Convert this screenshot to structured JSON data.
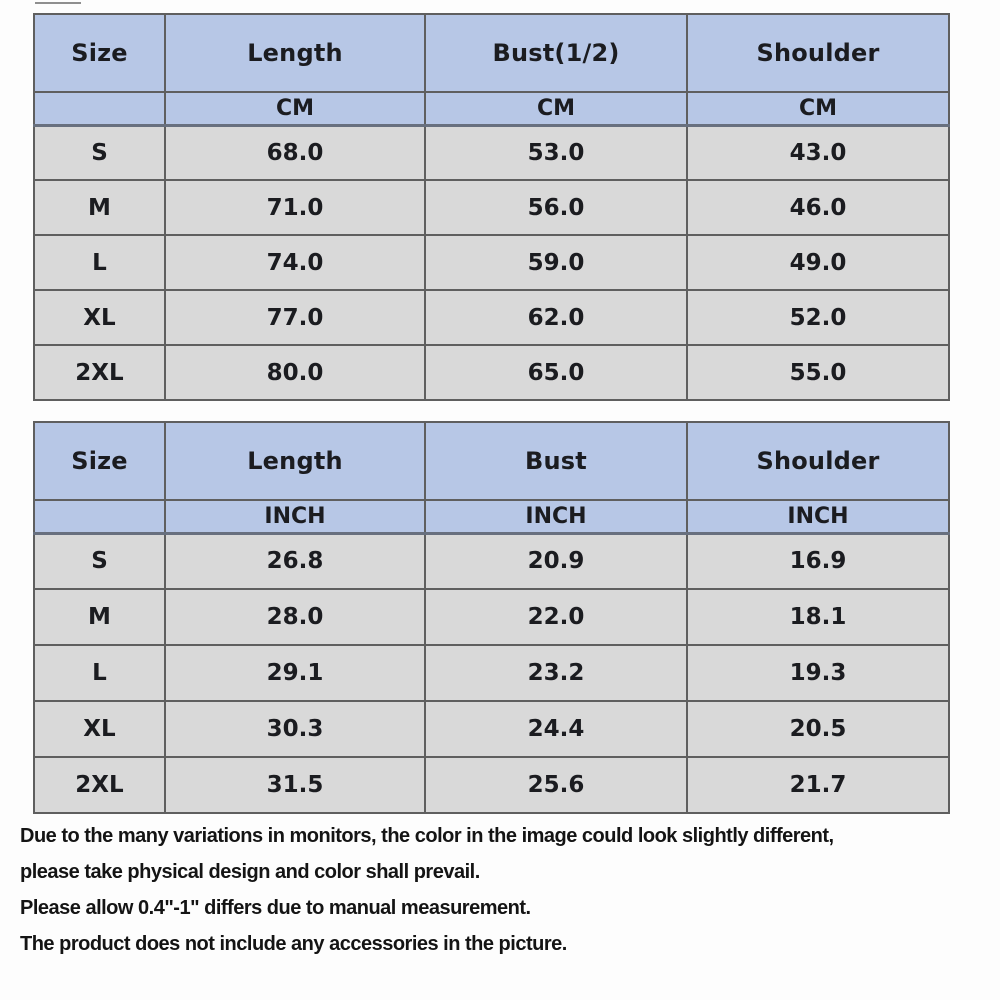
{
  "colors": {
    "header-fill": "#b7c7e6",
    "row-fill": "#d9d9d9",
    "border-color": "#5f5f5f",
    "unit-rule": "#68707f",
    "text-color": "#1b1c20"
  },
  "size_chart_cm": {
    "columns": [
      "Size",
      "Length",
      "Bust(1/2)",
      "Shoulder"
    ],
    "units": [
      "CM",
      "CM",
      "CM"
    ],
    "rows": [
      {
        "size": "S",
        "length": "68.0",
        "bust": "53.0",
        "shoulder": "43.0"
      },
      {
        "size": "M",
        "length": "71.0",
        "bust": "56.0",
        "shoulder": "46.0"
      },
      {
        "size": "L",
        "length": "74.0",
        "bust": "59.0",
        "shoulder": "49.0"
      },
      {
        "size": "XL",
        "length": "77.0",
        "bust": "62.0",
        "shoulder": "52.0"
      },
      {
        "size": "2XL",
        "length": "80.0",
        "bust": "65.0",
        "shoulder": "55.0"
      }
    ]
  },
  "size_chart_inch": {
    "columns": [
      "Size",
      "Length",
      "Bust",
      "Shoulder"
    ],
    "units": [
      "INCH",
      "INCH",
      "INCH"
    ],
    "rows": [
      {
        "size": "S",
        "length": "26.8",
        "bust": "20.9",
        "shoulder": "16.9"
      },
      {
        "size": "M",
        "length": "28.0",
        "bust": "22.0",
        "shoulder": "18.1"
      },
      {
        "size": "L",
        "length": "29.1",
        "bust": "23.2",
        "shoulder": "19.3"
      },
      {
        "size": "XL",
        "length": "30.3",
        "bust": "24.4",
        "shoulder": "20.5"
      },
      {
        "size": "2XL",
        "length": "31.5",
        "bust": "25.6",
        "shoulder": "21.7"
      }
    ]
  },
  "disclaimers": [
    "Due to the many variations in monitors, the color in the image could look slightly different,",
    "please take physical design and color shall prevail.",
    "Please allow 0.4\"-1\" differs due to manual measurement.",
    "The product does not include any accessories in the picture."
  ]
}
